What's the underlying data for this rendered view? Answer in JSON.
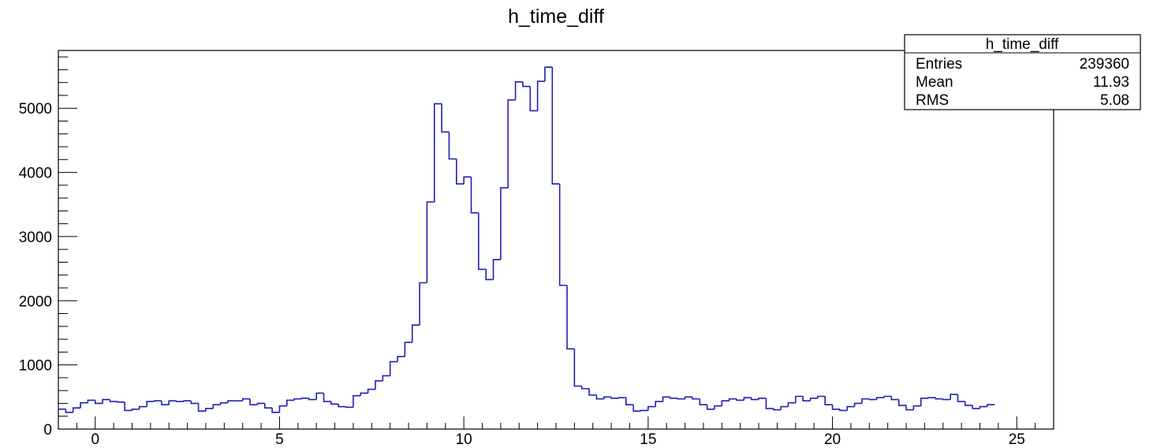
{
  "chart_data": {
    "type": "histogram",
    "title": "h_time_diff",
    "xlabel": "",
    "ylabel": "",
    "xlim": [
      -1,
      26
    ],
    "ylim": [
      0,
      5900
    ],
    "bin_width": 0.2,
    "x_start": -1.0,
    "x_ticks": [
      "0",
      "5",
      "10",
      "15",
      "20",
      "25"
    ],
    "y_ticks": [
      "0",
      "1000",
      "2000",
      "3000",
      "4000",
      "5000"
    ],
    "grid": false,
    "line_color": "#1f1fb4",
    "values": [
      310,
      260,
      330,
      410,
      450,
      400,
      460,
      430,
      420,
      290,
      310,
      350,
      430,
      440,
      380,
      440,
      430,
      440,
      400,
      280,
      320,
      380,
      410,
      440,
      440,
      470,
      380,
      400,
      330,
      260,
      360,
      450,
      470,
      480,
      460,
      560,
      430,
      390,
      350,
      340,
      520,
      560,
      620,
      750,
      830,
      1050,
      1130,
      1350,
      1620,
      2280,
      3540,
      5070,
      4630,
      4210,
      3820,
      3930,
      3370,
      2490,
      2330,
      2640,
      3760,
      5130,
      5410,
      5340,
      4960,
      5420,
      5640,
      3820,
      2240,
      1250,
      670,
      630,
      530,
      470,
      500,
      480,
      490,
      380,
      280,
      290,
      350,
      430,
      500,
      480,
      470,
      500,
      470,
      380,
      310,
      360,
      440,
      470,
      450,
      490,
      460,
      480,
      320,
      300,
      350,
      410,
      510,
      440,
      480,
      510,
      380,
      310,
      290,
      350,
      400,
      470,
      460,
      490,
      510,
      460,
      370,
      300,
      360,
      480,
      490,
      470,
      460,
      540,
      430,
      370,
      320,
      350,
      380
    ]
  },
  "stats_box": {
    "title": "h_time_diff",
    "rows": [
      {
        "label": "Entries",
        "value": "239360"
      },
      {
        "label": "Mean",
        "value": "11.93"
      },
      {
        "label": "RMS",
        "value": "5.08"
      }
    ]
  }
}
